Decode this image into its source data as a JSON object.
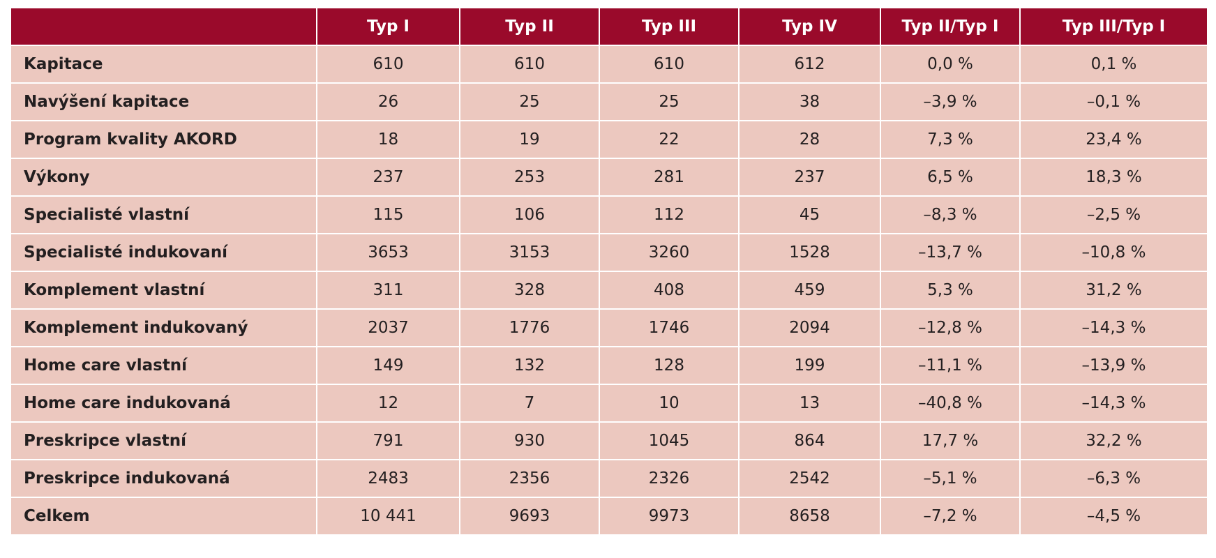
{
  "table": {
    "header": [
      "",
      "Typ I",
      "Typ II",
      "Typ III",
      "Typ IV",
      "Typ II/Typ I",
      "Typ III/Typ I"
    ],
    "rows": [
      [
        "Kapitace",
        "610",
        "610",
        "610",
        "612",
        "0,0 %",
        "0,1 %"
      ],
      [
        "Navýšení kapitace",
        "26",
        "25",
        "25",
        "38",
        "–3,9 %",
        "–0,1 %"
      ],
      [
        "Program kvality AKORD",
        "18",
        "19",
        "22",
        "28",
        "7,3 %",
        "23,4 %"
      ],
      [
        "Výkony",
        "237",
        "253",
        "281",
        "237",
        "6,5 %",
        "18,3 %"
      ],
      [
        "Specialisté vlastní",
        "115",
        "106",
        "112",
        "45",
        "–8,3 %",
        "–2,5 %"
      ],
      [
        "Specialisté indukovaní",
        "3653",
        "3153",
        "3260",
        "1528",
        "–13,7 %",
        "–10,8 %"
      ],
      [
        "Komplement vlastní",
        "311",
        "328",
        "408",
        "459",
        "5,3 %",
        "31,2 %"
      ],
      [
        "Komplement indukovaný",
        "2037",
        "1776",
        "1746",
        "2094",
        "–12,8 %",
        "–14,3 %"
      ],
      [
        "Home care vlastní",
        "149",
        "132",
        "128",
        "199",
        "–11,1 %",
        "–13,9 %"
      ],
      [
        "Home care indukovaná",
        "12",
        "7",
        "10",
        "13",
        "–40,8 %",
        "–14,3 %"
      ],
      [
        "Preskripce vlastní",
        "791",
        "930",
        "1045",
        "864",
        "17,7 %",
        "32,2 %"
      ],
      [
        "Preskripce indukovaná",
        "2483",
        "2356",
        "2326",
        "2542",
        "–5,1 %",
        "–6,3 %"
      ],
      [
        "Celkem",
        "10 441",
        "9693",
        "9973",
        "8658",
        "–7,2 %",
        "–4,5 %"
      ]
    ]
  }
}
